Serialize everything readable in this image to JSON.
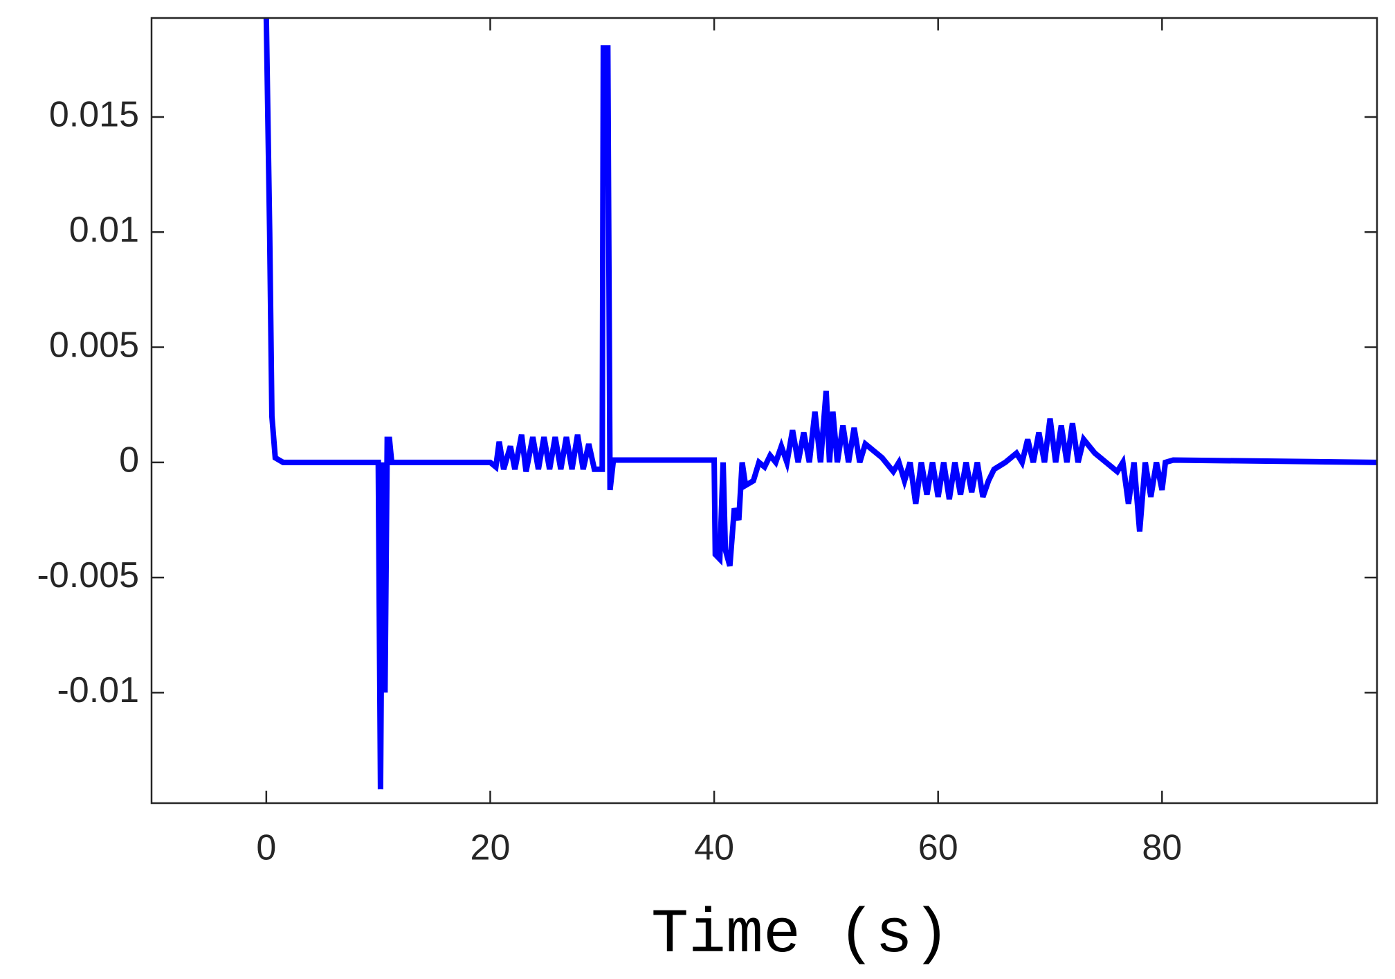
{
  "chart_data": {
    "type": "line",
    "xlabel": "Time (s)",
    "xlim": [
      -10.25,
      99.2
    ],
    "ylim": [
      -0.0148,
      0.0193
    ],
    "xticks": [
      0,
      20,
      40,
      60,
      80
    ],
    "yticks": [
      -0.01,
      -0.005,
      0,
      0.005,
      0.01,
      0.015
    ],
    "series": [
      {
        "color": "#0000ff",
        "x": [
          0,
          0.3,
          0.5,
          0.8,
          1.5,
          10,
          10.2,
          10.4,
          10.6,
          10.8,
          11,
          11.2,
          20,
          20.5,
          20.8,
          21.2,
          21.8,
          22.2,
          22.8,
          23.2,
          23.8,
          24.3,
          24.8,
          25.3,
          25.8,
          26.3,
          26.8,
          27.3,
          27.8,
          28.3,
          28.8,
          29.3,
          30,
          30.1,
          30.5,
          30.7,
          31,
          40,
          40.1,
          40.5,
          40.8,
          41,
          41.4,
          41.8,
          42.2,
          42.5,
          42.8,
          43.5,
          44,
          44.5,
          45,
          45.5,
          46,
          46.5,
          47,
          47.5,
          48,
          48.5,
          49,
          49.5,
          50,
          50.3,
          50.6,
          51,
          51.5,
          52,
          52.5,
          53,
          53.5,
          54,
          55,
          56,
          56.5,
          57,
          57.5,
          58,
          58.5,
          59,
          59.5,
          60,
          60.5,
          61,
          61.5,
          62,
          62.5,
          63,
          63.5,
          64,
          64.5,
          65,
          66,
          67,
          67.5,
          68,
          68.5,
          69,
          69.5,
          70,
          70.5,
          71,
          71.5,
          72,
          72.5,
          73,
          74,
          75,
          76,
          76.5,
          77,
          77.5,
          78,
          78.5,
          79,
          79.5,
          80,
          80.3,
          81,
          99.2
        ],
        "values": [
          0.0193,
          0.01,
          0.002,
          0.0002,
          0,
          0,
          -0.0142,
          0,
          -0.01,
          0.001,
          0.001,
          0,
          0,
          -0.0002,
          0.0009,
          -0.0003,
          0.0007,
          -0.0003,
          0.0012,
          -0.0004,
          0.0011,
          -0.0003,
          0.0011,
          -0.0003,
          0.0011,
          -0.0003,
          0.0011,
          -0.0003,
          0.0012,
          -0.0003,
          0.0008,
          -0.0003,
          -0.0003,
          0.018,
          0.018,
          -0.0012,
          0.0001,
          0.0001,
          -0.004,
          -0.0042,
          0,
          -0.0038,
          -0.0045,
          -0.002,
          -0.0025,
          0,
          -0.001,
          -0.0008,
          0,
          -0.0002,
          0.0003,
          0,
          0.0007,
          0,
          0.0014,
          0,
          0.0013,
          0,
          0.0022,
          0,
          0.0031,
          0,
          0.0022,
          0,
          0.0016,
          0,
          0.0015,
          0,
          0.0008,
          0.0006,
          0.0002,
          -0.0004,
          0,
          -0.0008,
          0,
          -0.0018,
          0,
          -0.0014,
          0,
          -0.0015,
          0,
          -0.0016,
          0,
          -0.0014,
          0,
          -0.0013,
          0,
          -0.0015,
          -0.0008,
          -0.0003,
          0,
          0.0004,
          0,
          0.001,
          0,
          0.0013,
          0,
          0.0019,
          0,
          0.0016,
          0,
          0.0017,
          0,
          0.001,
          0.0004,
          0,
          -0.0004,
          0,
          -0.0018,
          0,
          -0.003,
          0,
          -0.0015,
          0,
          -0.0012,
          0,
          0.0001,
          0
        ]
      }
    ]
  }
}
